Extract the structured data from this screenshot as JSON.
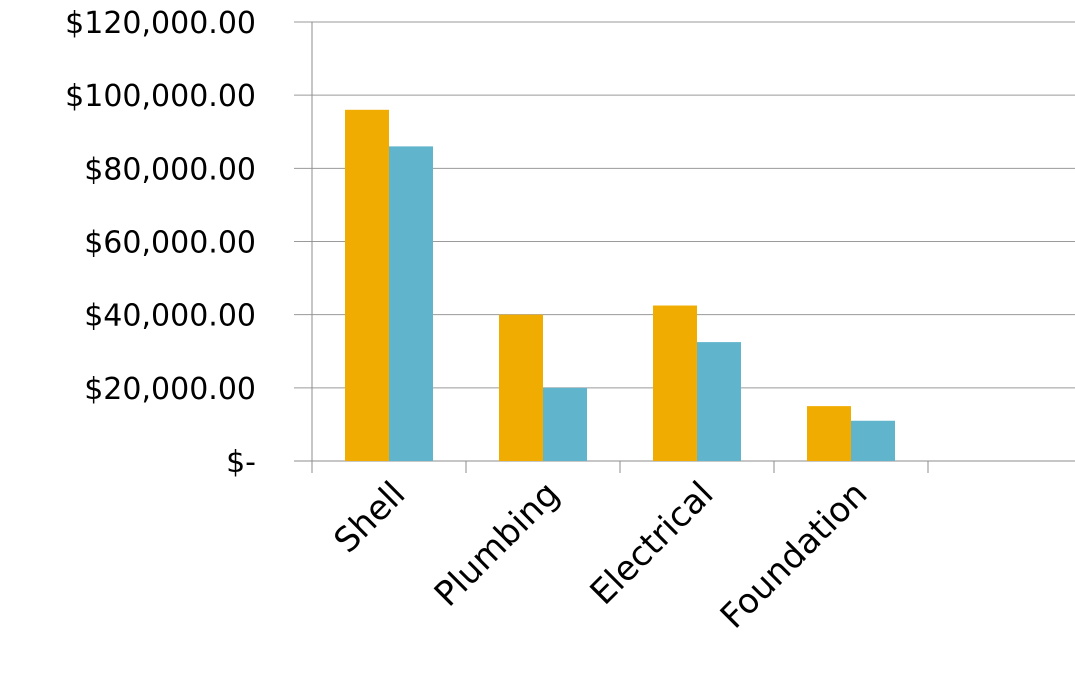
{
  "chart_data": {
    "type": "bar",
    "title": "",
    "xlabel": "",
    "ylabel": "",
    "categories": [
      "Shell",
      "Plumbing",
      "Electrical",
      "Foundation",
      ""
    ],
    "series": [
      {
        "values": [
          96000,
          40000,
          42500,
          15000,
          null
        ],
        "color": "#F0AC00"
      },
      {
        "values": [
          86000,
          20000,
          32500,
          11000,
          null
        ],
        "color": "#60B5CC"
      }
    ],
    "ylim": [
      0,
      120000
    ],
    "yticks": [
      0,
      20000,
      40000,
      60000,
      80000,
      100000,
      120000
    ],
    "ytick_labels": [
      "$-",
      "$20,000.00",
      "$40,000.00",
      "$60,000.00",
      "$80,000.00",
      "$100,000.00",
      "$120,000.00"
    ],
    "grid": true,
    "legend": "none"
  }
}
